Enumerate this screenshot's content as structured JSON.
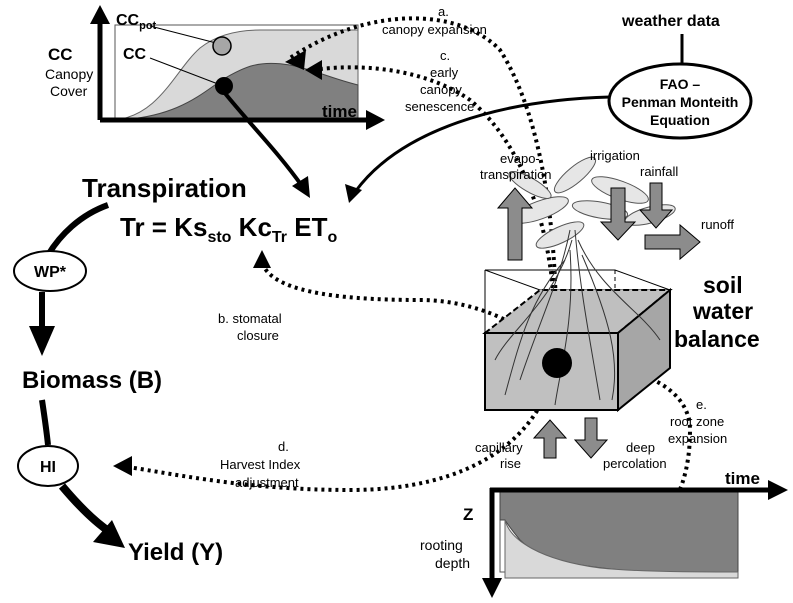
{
  "canopy_chart": {
    "y_label": "CC",
    "y_sub1": "Canopy",
    "y_sub2": "Cover",
    "cc_pot_main": "CC",
    "cc_pot_sub": "pot",
    "cc_label": "CC",
    "x_label": "time"
  },
  "annotations": {
    "a_letter": "a.",
    "a_text": "canopy expansion",
    "c_letter": "c.",
    "c_line1": "early",
    "c_line2": "canopy",
    "c_line3": "senescence",
    "b_line1": "b. stomatal",
    "b_line2": "closure",
    "d_letter": "d.",
    "d_line1": "Harvest Index",
    "d_line2": "adjustment",
    "e_letter": "e.",
    "e_line1": "root zone",
    "e_line2": "expansion"
  },
  "weather": {
    "label": "weather data",
    "eq_line1": "FAO –",
    "eq_line2": "Penman Monteith",
    "eq_line3": "Equation"
  },
  "transpiration": {
    "title": "Transpiration",
    "eq_tr": "Tr = Ks",
    "eq_sto": "sto",
    "eq_kc": " Kc",
    "eq_tr_sub": "Tr",
    "eq_et": " ET",
    "eq_o": "o"
  },
  "cycle": {
    "wp": "WP*",
    "biomass": "Biomass (B)",
    "hi": "HI",
    "yield": "Yield (Y)"
  },
  "soil": {
    "evapo1": "evapo-",
    "evapo2": "transpiration",
    "irrigation": "irrigation",
    "rainfall": "rainfall",
    "runoff": "runoff",
    "balance1": "soil",
    "balance2": "water",
    "balance3": "balance",
    "capillary1": "capillary",
    "capillary2": "rise",
    "deep1": "deep",
    "deep2": "percolation"
  },
  "root_chart": {
    "x_label": "time",
    "y_label": "Z",
    "sub1": "rooting",
    "sub2": "depth"
  },
  "colors": {
    "light_gray": "#d9d9d9",
    "mid_gray": "#a6a6a6",
    "dark_gray": "#808080",
    "black": "#000000"
  }
}
